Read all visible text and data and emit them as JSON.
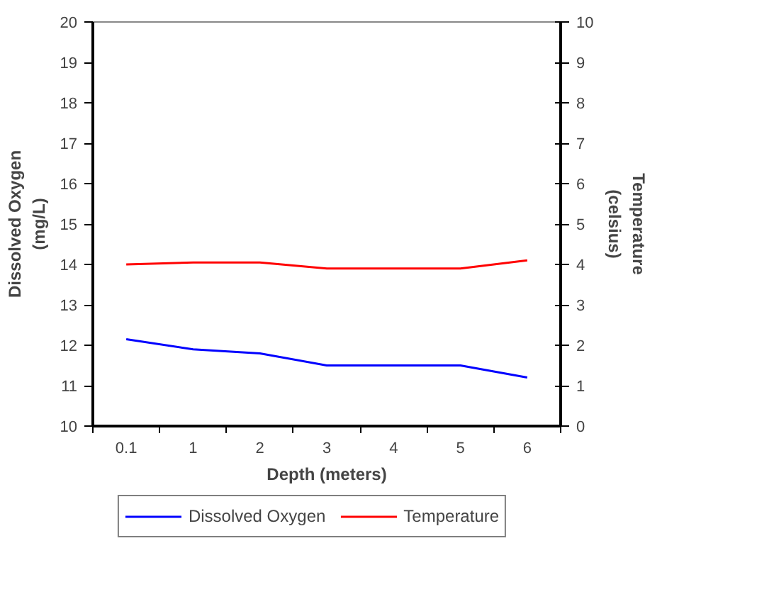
{
  "chart_data": {
    "type": "line",
    "xlabel": "Depth (meters)",
    "ylabel": "Dissolved Oxygen\n(mg/L)",
    "y2label": "Temperature\n(celsius)",
    "categories": [
      "0.1",
      "1",
      "2",
      "3",
      "4",
      "5",
      "6"
    ],
    "series": [
      {
        "name": "Dissolved Oxygen",
        "color": "#0000ff",
        "values": [
          12.15,
          11.9,
          11.8,
          11.5,
          11.5,
          11.5,
          11.2
        ]
      },
      {
        "name": "Temperature",
        "color": "#ff0000",
        "axis": "y2",
        "values": [
          4.0,
          4.05,
          4.05,
          3.9,
          3.9,
          3.9,
          4.1
        ]
      }
    ],
    "ylim": [
      10,
      20
    ],
    "yticks": [
      10,
      11,
      12,
      13,
      14,
      15,
      16,
      17,
      18,
      19,
      20
    ],
    "y2lim": [
      0,
      10
    ],
    "y2ticks": [
      0,
      1,
      2,
      3,
      4,
      5,
      6,
      7,
      8,
      9,
      10
    ],
    "grid": false,
    "legend": "bottom",
    "marker": "none",
    "line_style": "solid"
  }
}
